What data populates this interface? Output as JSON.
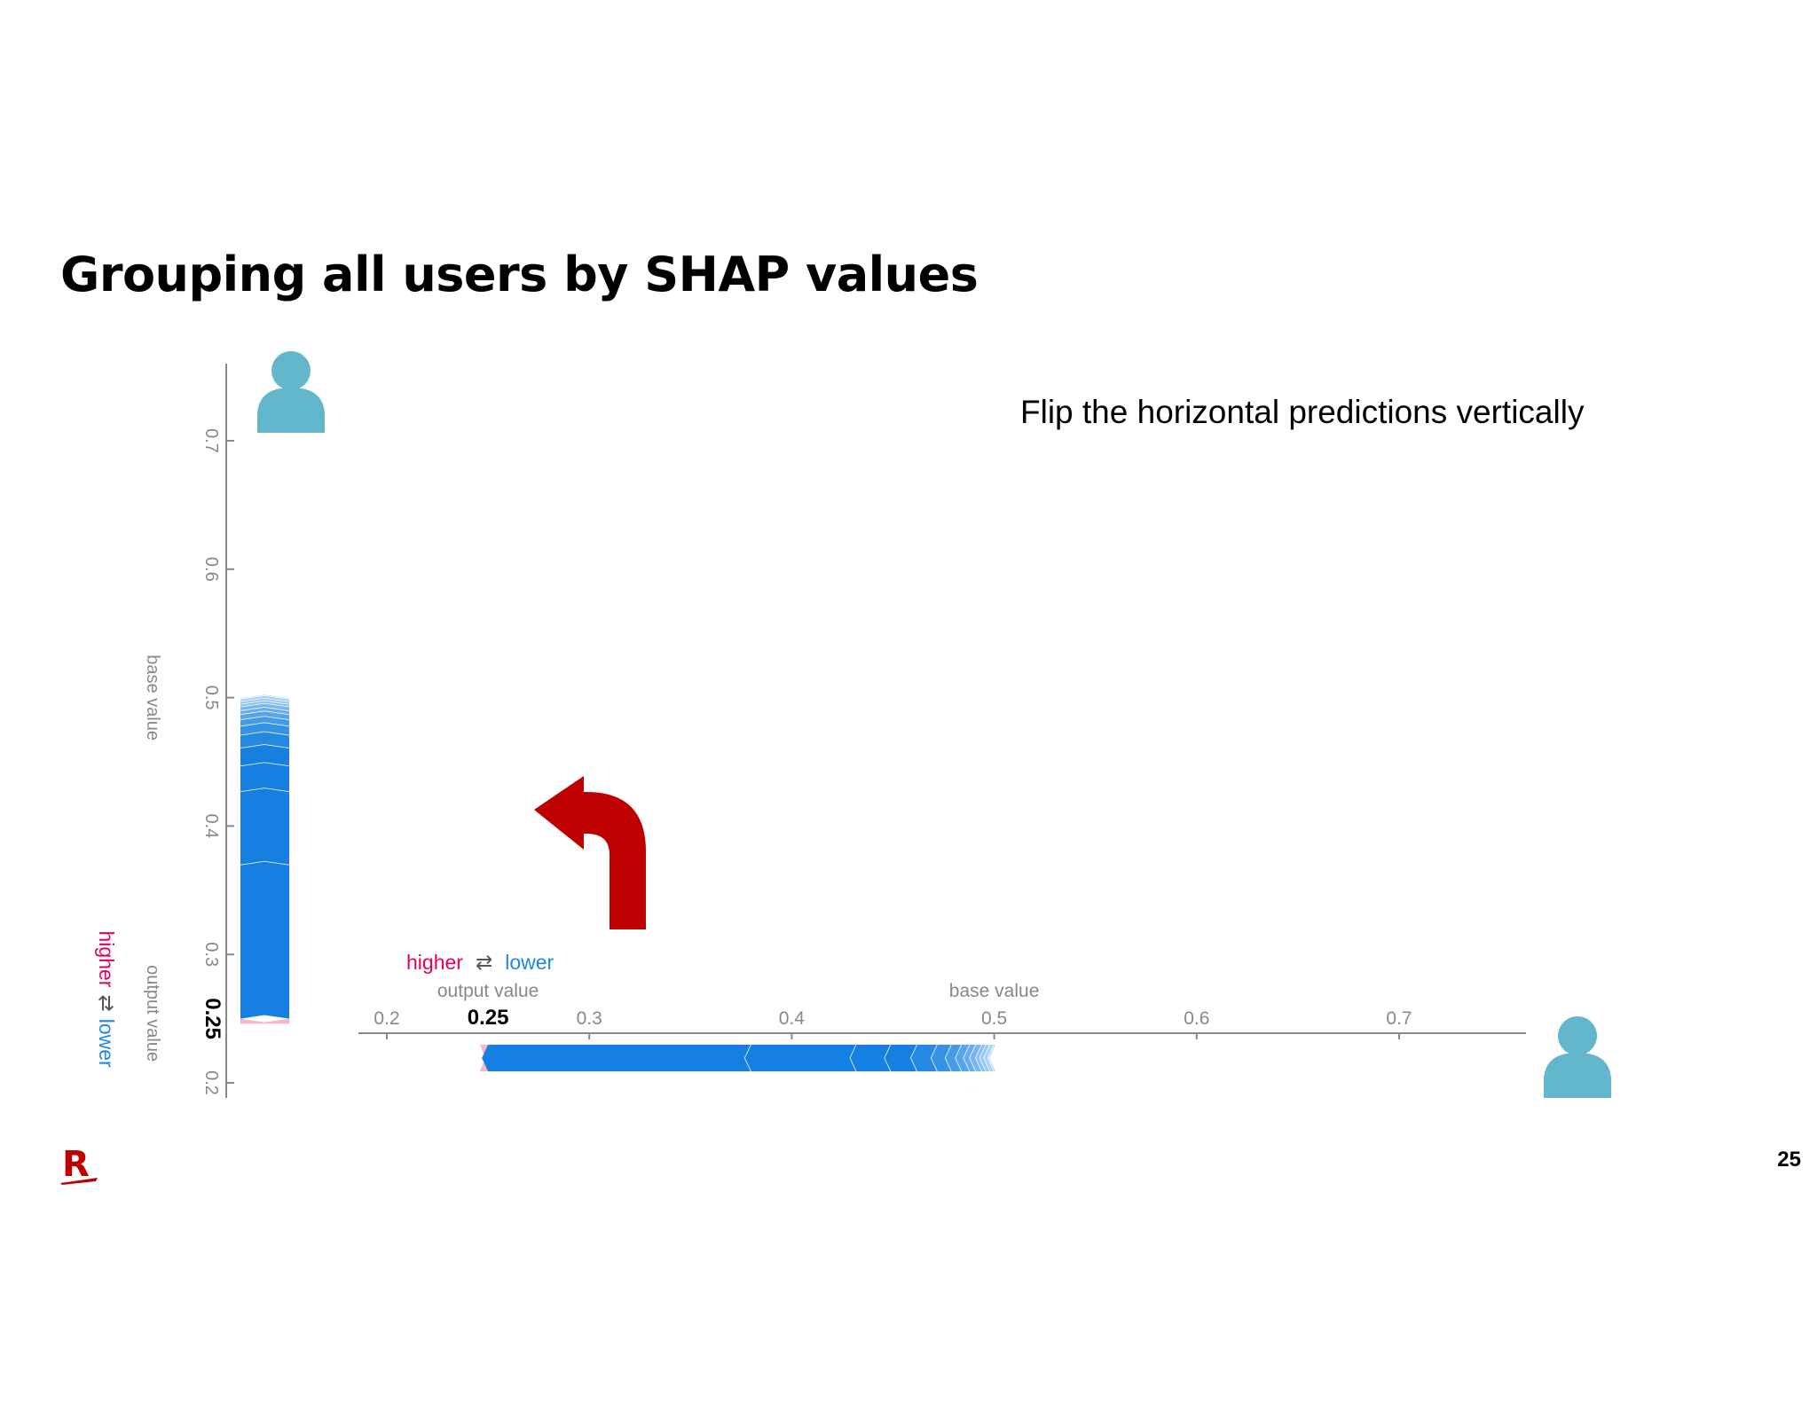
{
  "slide": {
    "title": "Grouping all users by SHAP values",
    "note": "Flip the horizontal predictions vertically",
    "page_number": "25",
    "logo_letter": "R"
  },
  "colors": {
    "higher": "#e6005a",
    "lower": "#1e88e5",
    "bar": "#1580e2",
    "bar_light": "#c9e3fb",
    "pink": "#f7b6cf",
    "arrow": "#bf0000",
    "person": "#62b7cc",
    "brand": "#bf0000"
  },
  "chart_data": [
    {
      "type": "bar",
      "orientation": "vertical",
      "title": "",
      "axis_ticks": [
        0.2,
        0.3,
        0.4,
        0.5,
        0.6,
        0.7
      ],
      "axis_range": [
        0.2,
        0.75
      ],
      "output_value": 0.25,
      "output_value_label": "0.25",
      "base_value": 0.5,
      "labels": {
        "higher": "higher",
        "lower": "lower",
        "output": "output value",
        "base": "base value",
        "arrows": "⇄"
      },
      "contributions_lower": [
        0.12,
        0.057,
        0.02,
        0.014,
        0.01,
        0.007,
        0.005,
        0.004,
        0.003,
        0.003,
        0.002,
        0.002,
        0.002,
        0.001
      ],
      "contributions_higher": [
        0.004
      ]
    },
    {
      "type": "bar",
      "orientation": "horizontal",
      "title": "",
      "axis_ticks": [
        0.2,
        0.3,
        0.4,
        0.5,
        0.6,
        0.7
      ],
      "axis_range": [
        0.19,
        0.76
      ],
      "output_value": 0.25,
      "output_value_label": "0.25",
      "base_value": 0.5,
      "labels": {
        "higher": "higher",
        "lower": "lower",
        "output": "output value",
        "base": "base value",
        "arrows": "⇄"
      },
      "contributions_lower": [
        0.13,
        0.052,
        0.017,
        0.013,
        0.01,
        0.007,
        0.005,
        0.004,
        0.003,
        0.003,
        0.002,
        0.002,
        0.002,
        0.001
      ],
      "contributions_higher": [
        0.004
      ]
    }
  ]
}
